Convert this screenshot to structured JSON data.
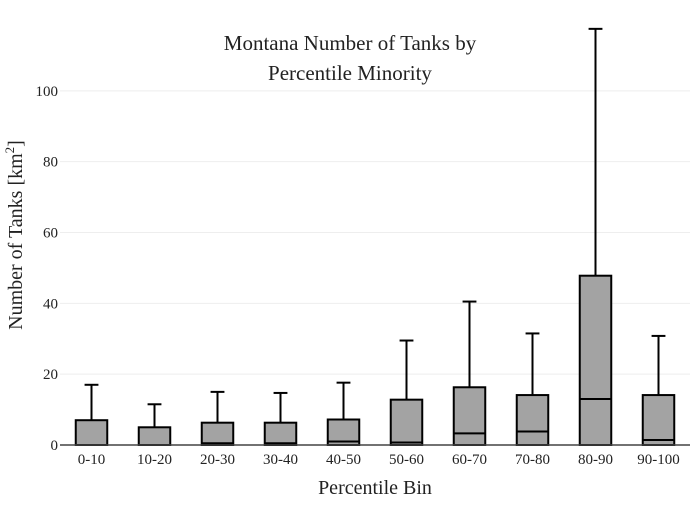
{
  "chart_data": {
    "type": "box",
    "title": [
      "Montana Number of Tanks by",
      "Percentile Minority"
    ],
    "xlabel": "Percentile Bin",
    "ylabel": "Number of Tanks  [km",
    "ylabel_superscript": "2",
    "ylabel_suffix": "]",
    "ylim": [
      0,
      120
    ],
    "yticks": [
      0,
      20,
      40,
      60,
      80,
      100
    ],
    "grid": true,
    "categories": [
      "0-10",
      "10-20",
      "20-30",
      "30-40",
      "40-50",
      "50-60",
      "60-70",
      "70-80",
      "80-90",
      "90-100"
    ],
    "boxes": [
      {
        "whisker_low": 0,
        "q1": 0,
        "median": 0,
        "q3": 7,
        "whisker_high": 17
      },
      {
        "whisker_low": 0,
        "q1": 0,
        "median": 0,
        "q3": 5,
        "whisker_high": 11.5
      },
      {
        "whisker_low": 0,
        "q1": 0,
        "median": 0.5,
        "q3": 6.3,
        "whisker_high": 15
      },
      {
        "whisker_low": 0,
        "q1": 0,
        "median": 0.5,
        "q3": 6.3,
        "whisker_high": 14.7
      },
      {
        "whisker_low": 0,
        "q1": 0,
        "median": 1,
        "q3": 7.2,
        "whisker_high": 17.6
      },
      {
        "whisker_low": 0,
        "q1": 0,
        "median": 0.7,
        "q3": 12.8,
        "whisker_high": 29.5
      },
      {
        "whisker_low": 0,
        "q1": 0,
        "median": 3.3,
        "q3": 16.3,
        "whisker_high": 40.5
      },
      {
        "whisker_low": 0,
        "q1": 0,
        "median": 3.8,
        "q3": 14.1,
        "whisker_high": 31.5
      },
      {
        "whisker_low": 0,
        "q1": 0,
        "median": 13,
        "q3": 47.8,
        "whisker_high": 117.5
      },
      {
        "whisker_low": 0,
        "q1": 0,
        "median": 1.4,
        "q3": 14.1,
        "whisker_high": 30.8
      }
    ],
    "colors": {
      "box_fill": "#a3a3a3",
      "box_stroke": "#000000",
      "grid": "#eeeeee",
      "axis": "#444444"
    }
  }
}
